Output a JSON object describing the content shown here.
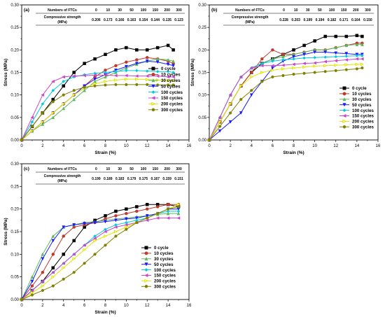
{
  "series_meta": {
    "names": [
      "0 cycle",
      "10 cycles",
      "30 cycles",
      "50 cycles",
      "100 cycles",
      "150 cycles",
      "200 cycles",
      "300 cycles"
    ],
    "colors": [
      "#000000",
      "#c0392b",
      "#5cb85c",
      "#1a1aff",
      "#00c8e0",
      "#cc44cc",
      "#ffff33",
      "#808000"
    ],
    "markers": [
      "square",
      "circle",
      "triangle-up",
      "triangle-down",
      "diamond",
      "triangle-left",
      "triangle-right",
      "hexagon"
    ]
  },
  "chart_data": [
    {
      "panel": "(a)",
      "type": "line",
      "xlabel": "Strain (%)",
      "ylabel": "Stress (MPa)",
      "xlim": [
        0,
        16
      ],
      "ylim": [
        0,
        0.3
      ],
      "xticks": [
        "0",
        "2",
        "4",
        "6",
        "8",
        "10",
        "12",
        "14",
        "16"
      ],
      "yticks": [
        "0.00",
        "0.05",
        "0.10",
        "0.15",
        "0.20",
        "0.25",
        "0.30"
      ],
      "table": {
        "row1_label": "Numbers of FTCs",
        "cycles": [
          "0",
          "10",
          "30",
          "50",
          "100",
          "150",
          "200",
          "300"
        ],
        "row2_label_1": "Compressive strength",
        "row2_label_2": "(MPa)",
        "strengths": [
          "0.206",
          "0.173",
          "0.166",
          "0.163",
          "0.154",
          "0.144",
          "0.135",
          "0.123"
        ]
      },
      "legend_position": "bottom-right",
      "series": [
        {
          "name": "0 cycle",
          "x": [
            0,
            1,
            2,
            3,
            4,
            5,
            6,
            7,
            8,
            9,
            10,
            11,
            12,
            13,
            14,
            14.5
          ],
          "y": [
            0,
            0.03,
            0.06,
            0.09,
            0.12,
            0.15,
            0.17,
            0.18,
            0.19,
            0.2,
            0.205,
            0.2,
            0.2,
            0.205,
            0.21,
            0.2
          ]
        },
        {
          "name": "10 cycles",
          "x": [
            0,
            1,
            2,
            3,
            4,
            5,
            6,
            7,
            8,
            9,
            10,
            11,
            12,
            13,
            14,
            14.5
          ],
          "y": [
            0,
            0.02,
            0.04,
            0.06,
            0.08,
            0.1,
            0.12,
            0.14,
            0.155,
            0.165,
            0.173,
            0.178,
            0.183,
            0.18,
            0.175,
            0.17
          ]
        },
        {
          "name": "30 cycles",
          "x": [
            0,
            1,
            2,
            3,
            4,
            5,
            6,
            7,
            8,
            9,
            10,
            11,
            12,
            13,
            14,
            14.5
          ],
          "y": [
            0,
            0.02,
            0.035,
            0.05,
            0.07,
            0.09,
            0.11,
            0.13,
            0.14,
            0.15,
            0.16,
            0.168,
            0.175,
            0.18,
            0.178,
            0.175
          ]
        },
        {
          "name": "50 cycles",
          "x": [
            0,
            1,
            2,
            3,
            4,
            5,
            6,
            7,
            8,
            9,
            10,
            11,
            12,
            13,
            14,
            14.5
          ],
          "y": [
            0,
            0.02,
            0.04,
            0.06,
            0.08,
            0.1,
            0.12,
            0.135,
            0.145,
            0.155,
            0.163,
            0.17,
            0.175,
            0.173,
            0.168,
            0.165
          ]
        },
        {
          "name": "100 cycles",
          "x": [
            0,
            1,
            2,
            3,
            4,
            5,
            6,
            7,
            8,
            9,
            10,
            11,
            12,
            13,
            14,
            14.5
          ],
          "y": [
            0,
            0.04,
            0.08,
            0.11,
            0.13,
            0.14,
            0.145,
            0.148,
            0.15,
            0.152,
            0.154,
            0.154,
            0.153,
            0.152,
            0.152,
            0.15
          ]
        },
        {
          "name": "150 cycles",
          "x": [
            0,
            1,
            2,
            3,
            4,
            5,
            6,
            7,
            8,
            9,
            10,
            11,
            12,
            13,
            14,
            14.5
          ],
          "y": [
            0,
            0.05,
            0.1,
            0.13,
            0.14,
            0.142,
            0.143,
            0.144,
            0.144,
            0.143,
            0.143,
            0.142,
            0.142,
            0.142,
            0.14,
            0.14
          ]
        },
        {
          "name": "200 cycles",
          "x": [
            0,
            1,
            2,
            3,
            4,
            5,
            6,
            7,
            8,
            9,
            10,
            11,
            12,
            13,
            14,
            14.5
          ],
          "y": [
            0,
            0.02,
            0.04,
            0.06,
            0.08,
            0.1,
            0.115,
            0.125,
            0.13,
            0.133,
            0.135,
            0.135,
            0.134,
            0.133,
            0.132,
            0.132
          ]
        },
        {
          "name": "300 cycles",
          "x": [
            0,
            1,
            2,
            3,
            4,
            5,
            6,
            7,
            8,
            9,
            10,
            11,
            12,
            13,
            14,
            14.5
          ],
          "y": [
            0,
            0.03,
            0.06,
            0.085,
            0.1,
            0.11,
            0.117,
            0.12,
            0.122,
            0.123,
            0.123,
            0.123,
            0.123,
            0.122,
            0.122,
            0.122
          ]
        }
      ]
    },
    {
      "panel": "(b)",
      "type": "line",
      "xlabel": "Strain (%)",
      "ylabel": "Stress (MPa)",
      "xlim": [
        0,
        16
      ],
      "ylim": [
        0,
        0.3
      ],
      "xticks": [
        "0",
        "2",
        "4",
        "6",
        "8",
        "10",
        "12",
        "14",
        "16"
      ],
      "yticks": [
        "0.00",
        "0.05",
        "0.10",
        "0.15",
        "0.20",
        "0.25",
        "0.30"
      ],
      "table": {
        "row1_label": "Numbers of FTCs",
        "cycles": [
          "0",
          "10",
          "30",
          "50",
          "100",
          "150",
          "200",
          "300"
        ],
        "row2_label_1": "Compressive strength",
        "row2_label_2": "(MPa)",
        "strengths": [
          "0.228",
          "0.203",
          "0.199",
          "0.194",
          "0.182",
          "0.171",
          "0.164",
          "0.150"
        ]
      },
      "legend_position": "bottom-right",
      "series": [
        {
          "name": "0 cycle",
          "x": [
            0,
            1,
            2,
            3,
            4,
            5,
            6,
            7,
            8,
            9,
            10,
            11,
            12,
            13,
            14,
            14.5
          ],
          "y": [
            0,
            0.04,
            0.08,
            0.12,
            0.15,
            0.17,
            0.18,
            0.19,
            0.2,
            0.21,
            0.22,
            0.23,
            0.23,
            0.23,
            0.232,
            0.23
          ]
        },
        {
          "name": "10 cycles",
          "x": [
            0,
            1,
            2,
            3,
            4,
            5,
            6,
            7,
            8,
            9,
            10,
            11,
            12,
            13,
            14,
            14.5
          ],
          "y": [
            0,
            0.04,
            0.08,
            0.12,
            0.15,
            0.18,
            0.2,
            0.19,
            0.19,
            0.195,
            0.2,
            0.2,
            0.205,
            0.21,
            0.215,
            0.215
          ]
        },
        {
          "name": "30 cycles",
          "x": [
            0,
            1,
            2,
            3,
            4,
            5,
            6,
            7,
            8,
            9,
            10,
            11,
            12,
            13,
            14,
            14.5
          ],
          "y": [
            0,
            0.05,
            0.1,
            0.14,
            0.16,
            0.17,
            0.18,
            0.185,
            0.19,
            0.195,
            0.2,
            0.2,
            0.205,
            0.21,
            0.212,
            0.212
          ]
        },
        {
          "name": "50 cycles",
          "x": [
            0,
            1,
            2,
            3,
            4,
            5,
            6,
            7,
            8,
            9,
            10,
            11,
            12,
            13,
            14,
            14.5
          ],
          "y": [
            0,
            0.02,
            0.04,
            0.06,
            0.1,
            0.13,
            0.16,
            0.175,
            0.185,
            0.19,
            0.195,
            0.195,
            0.193,
            0.192,
            0.19,
            0.19
          ]
        },
        {
          "name": "100 cycles",
          "x": [
            0,
            1,
            2,
            3,
            4,
            5,
            6,
            7,
            8,
            9,
            10,
            11,
            12,
            13,
            14,
            14.5
          ],
          "y": [
            0,
            0.05,
            0.1,
            0.14,
            0.16,
            0.17,
            0.175,
            0.178,
            0.18,
            0.182,
            0.183,
            0.184,
            0.185,
            0.186,
            0.187,
            0.187
          ]
        },
        {
          "name": "150 cycles",
          "x": [
            0,
            1,
            2,
            3,
            4,
            5,
            6,
            7,
            8,
            9,
            10,
            11,
            12,
            13,
            14,
            14.5
          ],
          "y": [
            0,
            0.05,
            0.1,
            0.14,
            0.16,
            0.165,
            0.165,
            0.166,
            0.168,
            0.17,
            0.171,
            0.174,
            0.176,
            0.178,
            0.18,
            0.18
          ]
        },
        {
          "name": "200 cycles",
          "x": [
            0,
            1,
            2,
            3,
            4,
            5,
            6,
            7,
            8,
            9,
            10,
            11,
            12,
            13,
            14,
            14.5
          ],
          "y": [
            0,
            0.04,
            0.08,
            0.12,
            0.14,
            0.15,
            0.155,
            0.158,
            0.16,
            0.162,
            0.164,
            0.165,
            0.166,
            0.167,
            0.168,
            0.168
          ]
        },
        {
          "name": "300 cycles",
          "x": [
            0,
            1,
            2,
            3,
            4,
            5,
            6,
            7,
            8,
            9,
            10,
            11,
            12,
            13,
            14,
            14.5
          ],
          "y": [
            0,
            0.03,
            0.06,
            0.09,
            0.11,
            0.13,
            0.14,
            0.143,
            0.146,
            0.148,
            0.15,
            0.152,
            0.154,
            0.156,
            0.158,
            0.16
          ]
        }
      ]
    },
    {
      "panel": "(c)",
      "type": "line",
      "xlabel": "Strain (%)",
      "ylabel": "Stress (MPa)",
      "xlim": [
        0,
        16
      ],
      "ylim": [
        0,
        0.3
      ],
      "xticks": [
        "0",
        "2",
        "4",
        "6",
        "8",
        "10",
        "12",
        "14",
        "16"
      ],
      "yticks": [
        "0.00",
        "0.05",
        "0.10",
        "0.15",
        "0.20",
        "0.25",
        "0.30"
      ],
      "table": {
        "row1_label": "Numbers of FTCs",
        "cycles": [
          "0",
          "10",
          "30",
          "50",
          "100",
          "150",
          "200",
          "300"
        ],
        "row2_label_1": "Compressive strength",
        "row2_label_2": "(MPa)",
        "strengths": [
          "0.199",
          "0.189",
          "0.183",
          "0.179",
          "0.175",
          "0.167",
          "0.159",
          "0.151"
        ]
      },
      "legend_position": "center-right",
      "series": [
        {
          "name": "0 cycle",
          "x": [
            0,
            1,
            2,
            3,
            4,
            5,
            6,
            7,
            8,
            9,
            10,
            11,
            12,
            13,
            14,
            15
          ],
          "y": [
            0,
            0.02,
            0.04,
            0.07,
            0.1,
            0.13,
            0.16,
            0.175,
            0.185,
            0.195,
            0.2,
            0.205,
            0.21,
            0.21,
            0.21,
            0.205
          ]
        },
        {
          "name": "10 cycles",
          "x": [
            0,
            1,
            2,
            3,
            4,
            5,
            6,
            7,
            8,
            9,
            10,
            11,
            12,
            13,
            14,
            15
          ],
          "y": [
            0,
            0.03,
            0.06,
            0.1,
            0.14,
            0.16,
            0.165,
            0.17,
            0.178,
            0.185,
            0.19,
            0.195,
            0.2,
            0.205,
            0.21,
            0.21
          ]
        },
        {
          "name": "30 cycles",
          "x": [
            0,
            1,
            2,
            3,
            4,
            5,
            6,
            7,
            8,
            9,
            10,
            11,
            12,
            13,
            14,
            15
          ],
          "y": [
            0,
            0.05,
            0.1,
            0.14,
            0.16,
            0.165,
            0.17,
            0.172,
            0.175,
            0.178,
            0.18,
            0.183,
            0.185,
            0.188,
            0.19,
            0.19
          ]
        },
        {
          "name": "50 cycles",
          "x": [
            0,
            1,
            2,
            3,
            4,
            5,
            6,
            7,
            8,
            9,
            10,
            11,
            12,
            13,
            14,
            15
          ],
          "y": [
            0,
            0.04,
            0.09,
            0.13,
            0.16,
            0.165,
            0.168,
            0.17,
            0.172,
            0.175,
            0.178,
            0.18,
            0.185,
            0.19,
            0.2,
            0.2
          ]
        },
        {
          "name": "100 cycles",
          "x": [
            0,
            1,
            2,
            3,
            4,
            5,
            6,
            7,
            8,
            9,
            10,
            11,
            12,
            13,
            14,
            15
          ],
          "y": [
            0,
            0.02,
            0.04,
            0.06,
            0.08,
            0.1,
            0.12,
            0.14,
            0.155,
            0.165,
            0.17,
            0.175,
            0.18,
            0.19,
            0.195,
            0.195
          ]
        },
        {
          "name": "150 cycles",
          "x": [
            0,
            1,
            2,
            3,
            4,
            5,
            6,
            7,
            8,
            9,
            10,
            11,
            12,
            13,
            14,
            15
          ],
          "y": [
            0,
            0.02,
            0.04,
            0.06,
            0.08,
            0.1,
            0.12,
            0.135,
            0.15,
            0.16,
            0.165,
            0.17,
            0.175,
            0.18,
            0.18,
            0.18
          ]
        },
        {
          "name": "200 cycles",
          "x": [
            0,
            1,
            2,
            3,
            4,
            5,
            6,
            7,
            8,
            9,
            10,
            11,
            12,
            13,
            14,
            15
          ],
          "y": [
            0,
            0.015,
            0.03,
            0.05,
            0.07,
            0.09,
            0.11,
            0.13,
            0.14,
            0.15,
            0.16,
            0.17,
            0.18,
            0.19,
            0.2,
            0.21
          ]
        },
        {
          "name": "300 cycles",
          "x": [
            0,
            1,
            2,
            3,
            4,
            5,
            6,
            7,
            8,
            9,
            10,
            11,
            12,
            13,
            14,
            15
          ],
          "y": [
            0,
            0.01,
            0.02,
            0.03,
            0.045,
            0.06,
            0.08,
            0.1,
            0.12,
            0.14,
            0.155,
            0.17,
            0.18,
            0.19,
            0.2,
            0.205
          ]
        }
      ]
    }
  ]
}
